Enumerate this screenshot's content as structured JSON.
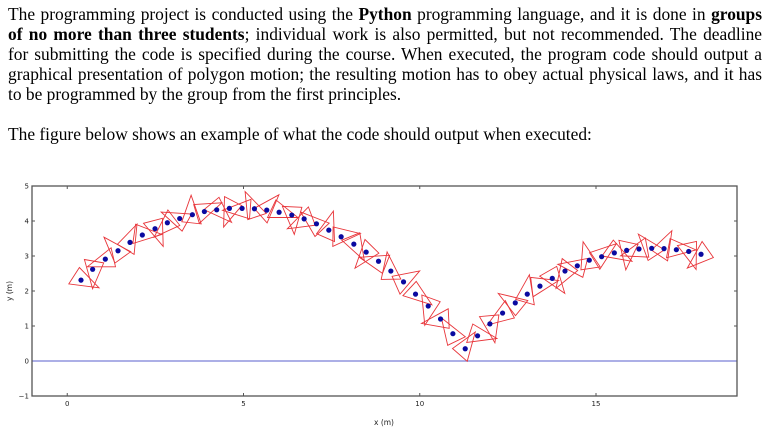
{
  "paragraphs": {
    "p1": {
      "line1": {
        "a": "The programming project is conducted using the ",
        "b": "Python",
        "c": " programming language, and it is done in ",
        "d": "groups"
      },
      "line2": {
        "a": "of no more than three students",
        "b": "; individual work is also permitted, but not recommended. The deadline"
      },
      "line3": "for submitting the code is specified during the course. When executed, the program code should output a",
      "line4": "graphical presentation of polygon motion; the resulting motion has to obey actual physical laws, and it has",
      "line5": "to be programmed by the group from the first principles."
    },
    "p2": "The figure below shows an example of what the code should output when executed:"
  },
  "chart_data": {
    "type": "scatter",
    "xlabel": "x (m)",
    "ylabel": "y (m)",
    "xlim": [
      -1,
      19
    ],
    "ylim": [
      -1,
      5
    ],
    "xticks": [
      "0",
      "5",
      "10",
      "15"
    ],
    "yticks": [
      "-1",
      "0",
      "1",
      "2",
      "3",
      "4",
      "5"
    ],
    "grid": false,
    "ground_line_y": 0,
    "colors": {
      "points": "#0a0aa0",
      "polygons": "#e8353a",
      "ground": "#7b7fd6",
      "frame": "#555555"
    },
    "points": [
      [
        0.39,
        2.31
      ],
      [
        0.72,
        2.62
      ],
      [
        1.08,
        2.91
      ],
      [
        1.44,
        3.15
      ],
      [
        1.78,
        3.39
      ],
      [
        2.13,
        3.6
      ],
      [
        2.49,
        3.78
      ],
      [
        2.84,
        3.95
      ],
      [
        3.19,
        4.07
      ],
      [
        3.55,
        4.18
      ],
      [
        3.89,
        4.27
      ],
      [
        4.24,
        4.32
      ],
      [
        4.6,
        4.36
      ],
      [
        4.96,
        4.36
      ],
      [
        5.31,
        4.35
      ],
      [
        5.66,
        4.31
      ],
      [
        6.01,
        4.25
      ],
      [
        6.37,
        4.17
      ],
      [
        6.72,
        4.06
      ],
      [
        7.07,
        3.92
      ],
      [
        7.42,
        3.74
      ],
      [
        7.77,
        3.55
      ],
      [
        8.13,
        3.34
      ],
      [
        8.48,
        3.11
      ],
      [
        8.83,
        2.85
      ],
      [
        9.18,
        2.57
      ],
      [
        9.54,
        2.26
      ],
      [
        9.88,
        1.91
      ],
      [
        10.24,
        1.57
      ],
      [
        10.59,
        1.2
      ],
      [
        10.94,
        0.78
      ],
      [
        11.29,
        0.35
      ],
      [
        11.64,
        0.72
      ],
      [
        11.99,
        1.06
      ],
      [
        12.35,
        1.37
      ],
      [
        12.71,
        1.66
      ],
      [
        13.05,
        1.91
      ],
      [
        13.41,
        2.14
      ],
      [
        13.76,
        2.36
      ],
      [
        14.12,
        2.57
      ],
      [
        14.47,
        2.72
      ],
      [
        14.81,
        2.88
      ],
      [
        15.16,
        2.98
      ],
      [
        15.52,
        3.09
      ],
      [
        15.87,
        3.16
      ],
      [
        16.22,
        3.2
      ],
      [
        16.58,
        3.22
      ],
      [
        16.93,
        3.21
      ],
      [
        17.28,
        3.18
      ],
      [
        17.63,
        3.13
      ],
      [
        17.98,
        3.05
      ]
    ],
    "polygon_shape": "triangle"
  }
}
